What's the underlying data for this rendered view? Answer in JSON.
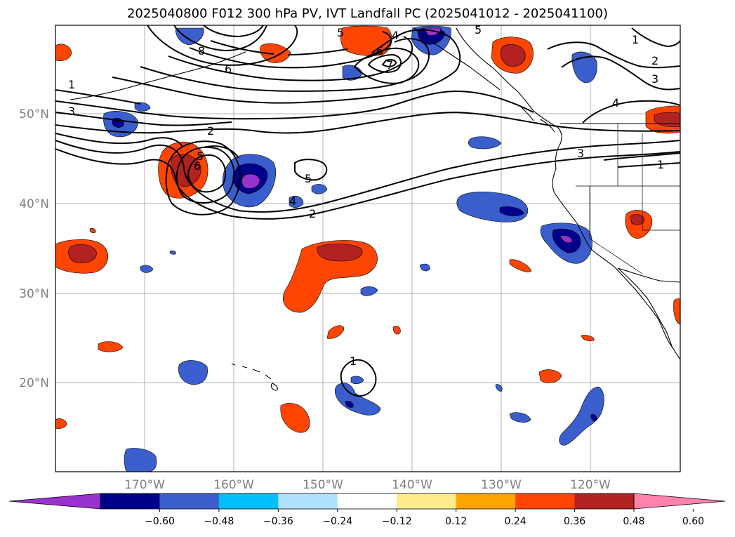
{
  "title": "2025040800 F012 300 hPa PV, IVT Landfall PC (2025041012 - 2025041100)",
  "lat_labels": [
    "50°N",
    "40°N",
    "30°N",
    "20°N"
  ],
  "lon_labels": [
    "170°W",
    "160°W",
    "150°W",
    "140°W",
    "130°W",
    "120°W"
  ],
  "colorbar": {
    "ticks": [
      "−0.60",
      "−0.48",
      "−0.36",
      "−0.24",
      "−0.12",
      "0.12",
      "0.24",
      "0.36",
      "0.48",
      "0.60"
    ],
    "colors": [
      "#9932CC",
      "#00008B",
      "#3A5FCD",
      "#00BFFF",
      "#B0E2FF",
      "#FFFFFF",
      "#FFEC8B",
      "#FFA500",
      "#FF4500",
      "#B22222",
      "#FF82AB"
    ]
  },
  "contour_labels": [
    "1",
    "2",
    "3",
    "4",
    "5",
    "6",
    "7",
    "8"
  ],
  "colors": {
    "positive_strong": "#B22222",
    "positive": "#FF4500",
    "positive_weak": "#FFA500",
    "negative": "#3A5FCD",
    "negative_strong": "#00008B",
    "negative_max": "#9932CC",
    "grid": "#b0b0b0"
  }
}
